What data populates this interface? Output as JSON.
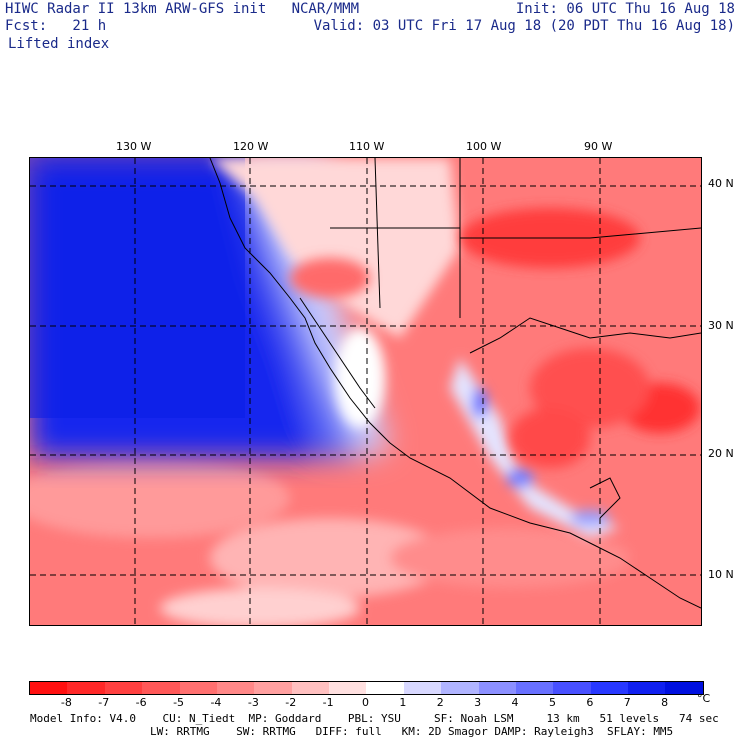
{
  "header": {
    "line1_left": "HIWC Radar II 13km ARW-GFS init   NCAR/MMM",
    "line1_right": "Init: 06 UTC Thu 16 Aug 18",
    "line2_left": "Fcst:   21 h",
    "line2_right": "Valid: 03 UTC Fri 17 Aug 18 (20 PDT Thu 16 Aug 18)",
    "field": "Lifted index"
  },
  "map": {
    "lon_labels": [
      "130 W",
      "120 W",
      "110 W",
      "100 W",
      "90 W"
    ],
    "lat_labels": [
      "40 N",
      "30 N",
      "20 N",
      "10 N"
    ],
    "colors": {
      "ocean_stable": "#0a1ee6",
      "land_unstable": "#ff6060"
    }
  },
  "colorbar": {
    "labels": [
      "-8",
      "-7",
      "-6",
      "-5",
      "-4",
      "-3",
      "-2",
      "-1",
      "0",
      "1",
      "2",
      "3",
      "4",
      "5",
      "6",
      "7",
      "8"
    ],
    "unit": "°C",
    "colors": [
      "#ff1010",
      "#ff2828",
      "#ff4040",
      "#ff5858",
      "#ff7070",
      "#ff8888",
      "#ffa0a0",
      "#ffc0c0",
      "#ffe0e0",
      "#ffffff",
      "#d8d8ff",
      "#b0b4ff",
      "#8c90ff",
      "#6870ff",
      "#4850ff",
      "#2838ff",
      "#1020f0",
      "#0010e0"
    ]
  },
  "footer": {
    "line1": "Model Info: V4.0    CU: N_Tiedt  MP: Goddard    PBL: YSU     SF: Noah LSM     13 km   51 levels   74 sec",
    "line2": "LW: RRTMG    SW: RRTMG   DIFF: full   KM: 2D Smagor DAMP: Rayleigh3  SFLAY: MM5"
  }
}
